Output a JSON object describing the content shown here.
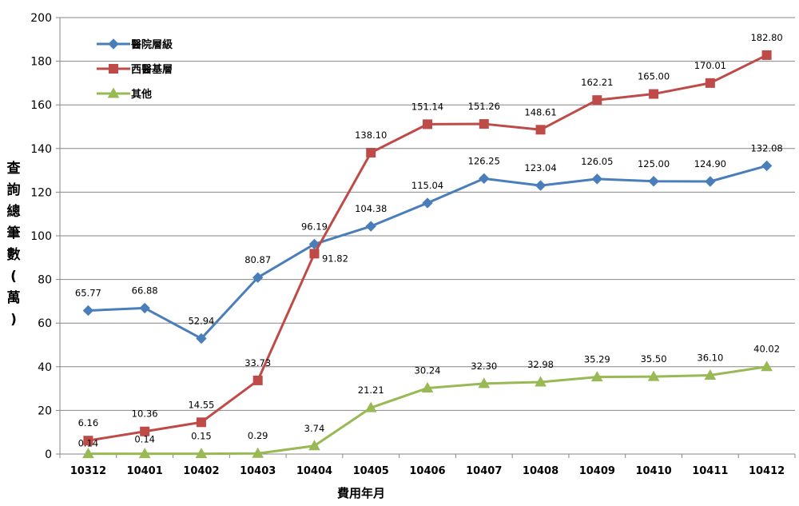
{
  "chart_data": {
    "type": "line",
    "x": [
      "10312",
      "10401",
      "10402",
      "10403",
      "10404",
      "10405",
      "10406",
      "10407",
      "10408",
      "10409",
      "10410",
      "10411",
      "10412"
    ],
    "xlabel": "費用年月",
    "ylabel": "查\n詢\n總\n筆\n數\n(\n萬\n)",
    "ylim": [
      0,
      200
    ],
    "yticks": [
      "0",
      "20",
      "40",
      "60",
      "80",
      "100",
      "120",
      "140",
      "160",
      "180",
      "200"
    ],
    "grid": true,
    "legend_position": "top-left",
    "series": [
      {
        "name": "醫院層級",
        "color": "#4a7ebb",
        "marker": "diamond",
        "values": [
          65.77,
          66.88,
          52.94,
          80.87,
          96.19,
          104.38,
          115.04,
          126.25,
          123.04,
          126.05,
          125.0,
          124.9,
          132.08
        ],
        "labels": [
          "65.77",
          "66.88",
          "52.94",
          "80.87",
          "96.19",
          "104.38",
          "115.04",
          "126.25",
          "123.04",
          "126.05",
          "125.00",
          "124.90",
          "132.08"
        ]
      },
      {
        "name": "西醫基層",
        "color": "#be4b48",
        "marker": "square",
        "values": [
          6.16,
          10.36,
          14.55,
          33.73,
          91.82,
          138.1,
          151.14,
          151.26,
          148.61,
          162.21,
          165.0,
          170.01,
          182.8
        ],
        "labels": [
          "6.16",
          "10.36",
          "14.55",
          "33.73",
          "91.82",
          "138.10",
          "151.14",
          "151.26",
          "148.61",
          "162.21",
          "165.00",
          "170.01",
          "182.80"
        ]
      },
      {
        "name": "其他",
        "color": "#98b954",
        "marker": "triangle",
        "values": [
          0.14,
          0.14,
          0.15,
          0.29,
          3.74,
          21.21,
          30.24,
          32.3,
          32.98,
          35.29,
          35.5,
          36.1,
          40.02
        ],
        "labels": [
          "0.14",
          "0.14",
          "0.15",
          "0.29",
          "3.74",
          "21.21",
          "30.24",
          "32.30",
          "32.98",
          "35.29",
          "35.50",
          "36.10",
          "40.02"
        ]
      }
    ]
  }
}
